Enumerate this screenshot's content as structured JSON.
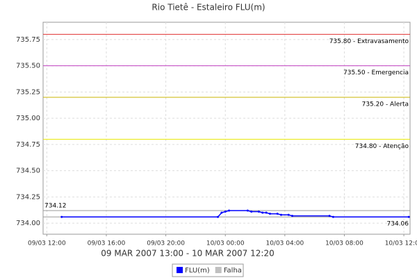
{
  "chart_data": {
    "type": "line",
    "title": "Rio Tietê - Estaleiro FLU(m)",
    "subtitle": "09 MAR 2007 13:00 - 10 MAR 2007 12:20",
    "x": [
      "09/03 13:00",
      "09/03 23:30",
      "09/03 23:45",
      "10/03 00:00",
      "10/03 00:15",
      "10/03 01:30",
      "10/03 01:45",
      "10/03 02:15",
      "10/03 02:30",
      "10/03 02:45",
      "10/03 03:00",
      "10/03 03:30",
      "10/03 03:45",
      "10/03 04:15",
      "10/03 04:30",
      "10/03 07:00",
      "10/03 07:15",
      "10/03 12:20"
    ],
    "series": [
      {
        "name": "FLU(m)",
        "color": "#0000ff",
        "values": [
          734.06,
          734.06,
          734.1,
          734.11,
          734.12,
          734.12,
          734.11,
          734.11,
          734.1,
          734.1,
          734.09,
          734.09,
          734.08,
          734.08,
          734.07,
          734.07,
          734.06,
          734.06
        ]
      }
    ],
    "legend_extra": [
      {
        "name": "Falha",
        "color": "#c0c0c0"
      }
    ],
    "xlim": [
      "09/03 11:45",
      "10/03 12:25"
    ],
    "xticks": [
      "09/03 12:00",
      "09/03 16:00",
      "09/03 20:00",
      "10/03 00:00",
      "10/03 04:00",
      "10/03 08:00",
      "10/03 12:00"
    ],
    "ylim": [
      733.895,
      735.915
    ],
    "yticks": [
      {
        "value": 734,
        "label": "734.00"
      },
      734.25,
      {
        "value": 734.5,
        "label": "734.50"
      },
      734.75,
      {
        "value": 735,
        "label": "735.00"
      },
      735.25,
      {
        "value": 735.5,
        "label": "735.50"
      },
      735.75
    ],
    "grid": true,
    "thresholds": [
      {
        "value": 735.8,
        "label": "735.80 - Extravasamento",
        "color": "#e03030",
        "side": "right"
      },
      {
        "value": 735.5,
        "label": "735.50 - Emergencia",
        "color": "#c040c0",
        "side": "right"
      },
      {
        "value": 735.2,
        "label": "735.20 - Alerta",
        "color": "#c8b400",
        "side": "right"
      },
      {
        "value": 734.8,
        "label": "734.80 - Atenção",
        "color": "#e8e800",
        "side": "right"
      },
      {
        "value": 734.12,
        "label": "734.12",
        "color": "#999999",
        "side": "left"
      },
      {
        "value": 734.06,
        "label": "734.06",
        "color": "#999999",
        "side": "right"
      }
    ]
  }
}
